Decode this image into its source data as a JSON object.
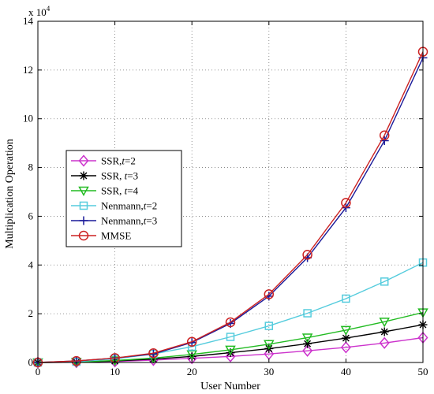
{
  "chart_data": {
    "type": "line",
    "title": "",
    "xlabel": "User Number",
    "ylabel": "Multiplication Operation",
    "y_multiplier_label": "x 10",
    "y_multiplier_exponent": "4",
    "xlim": [
      0,
      50
    ],
    "ylim": [
      0,
      14
    ],
    "xticks": [
      0,
      10,
      20,
      30,
      40,
      50
    ],
    "yticks": [
      0,
      2,
      4,
      6,
      8,
      10,
      12,
      14
    ],
    "grid": true,
    "legend_position": "left-middle",
    "x": [
      0,
      5,
      10,
      15,
      20,
      25,
      30,
      35,
      40,
      45,
      50
    ],
    "series": [
      {
        "name": "SSR,t=2",
        "legend_label": "SSR,",
        "legend_italic": "t",
        "legend_suffix": "=2",
        "color": "#cc33cc",
        "marker": "diamond",
        "values": [
          0,
          0.01,
          0.04,
          0.1,
          0.17,
          0.25,
          0.35,
          0.48,
          0.62,
          0.8,
          1.02
        ]
      },
      {
        "name": "SSR, t=3",
        "legend_label": "SSR, ",
        "legend_italic": "t",
        "legend_suffix": "=3",
        "color": "#000000",
        "marker": "asterisk",
        "values": [
          0,
          0.01,
          0.06,
          0.14,
          0.25,
          0.4,
          0.57,
          0.77,
          1.0,
          1.26,
          1.55
        ]
      },
      {
        "name": "SSR, t=4",
        "legend_label": "SSR, ",
        "legend_italic": "t",
        "legend_suffix": "=4",
        "color": "#22bb22",
        "marker": "triangle-down",
        "values": [
          0,
          0.02,
          0.08,
          0.18,
          0.33,
          0.52,
          0.75,
          1.02,
          1.33,
          1.67,
          2.05
        ]
      },
      {
        "name": "Nenmann,t=2",
        "legend_label": "Nenmann,",
        "legend_italic": "t",
        "legend_suffix": "=2",
        "color": "#55ccdd",
        "marker": "square",
        "values": [
          0,
          0.03,
          0.15,
          0.35,
          0.65,
          1.05,
          1.5,
          2.02,
          2.62,
          3.32,
          4.1
        ]
      },
      {
        "name": "Nenmann,t=3",
        "legend_label": "Nenmann,",
        "legend_italic": "t",
        "legend_suffix": "=3",
        "color": "#1a1a99",
        "marker": "plus",
        "values": [
          0,
          0.06,
          0.18,
          0.35,
          0.82,
          1.6,
          2.72,
          4.3,
          6.35,
          9.1,
          12.5
        ]
      },
      {
        "name": "MMSE",
        "legend_label": "MMSE",
        "legend_italic": "",
        "legend_suffix": "",
        "color": "#cc2222",
        "marker": "circle",
        "values": [
          0,
          0.06,
          0.18,
          0.38,
          0.85,
          1.65,
          2.8,
          4.42,
          6.55,
          9.32,
          12.75
        ]
      }
    ]
  }
}
